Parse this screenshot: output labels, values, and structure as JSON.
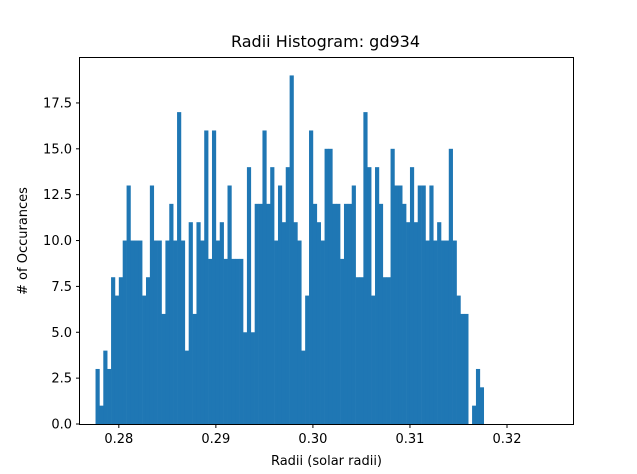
{
  "chart_data": {
    "type": "bar",
    "title": "Radii Histogram: gd934",
    "xlabel": "Radii (solar radii)",
    "ylabel": "# of Occurances",
    "xlim": [
      0.276,
      0.3268
    ],
    "ylim": [
      0,
      19.95
    ],
    "x_start": 0.2776,
    "bin_width": 0.0004,
    "bar_color": "#1f77b4",
    "grid": false,
    "xticks": [
      {
        "value": 0.28,
        "label": "0.28"
      },
      {
        "value": 0.29,
        "label": "0.29"
      },
      {
        "value": 0.3,
        "label": "0.30"
      },
      {
        "value": 0.31,
        "label": "0.31"
      },
      {
        "value": 0.32,
        "label": "0.32"
      }
    ],
    "yticks": [
      {
        "value": 0.0,
        "label": "0.0"
      },
      {
        "value": 2.5,
        "label": "2.5"
      },
      {
        "value": 5.0,
        "label": "5.0"
      },
      {
        "value": 7.5,
        "label": "7.5"
      },
      {
        "value": 10.0,
        "label": "10.0"
      },
      {
        "value": 12.5,
        "label": "12.5"
      },
      {
        "value": 15.0,
        "label": "15.0"
      },
      {
        "value": 17.5,
        "label": "17.5"
      }
    ],
    "values": [
      3,
      1,
      4,
      3,
      8,
      7,
      8,
      10,
      13,
      10,
      10,
      10,
      7,
      8,
      13,
      10,
      10,
      6,
      10,
      12,
      10,
      17,
      10,
      4,
      11,
      6,
      11,
      10,
      16,
      9,
      16,
      10,
      11,
      9,
      13,
      9,
      9,
      9,
      5,
      14,
      5,
      12,
      12,
      16,
      12,
      14,
      10,
      13,
      11,
      14,
      19,
      11,
      10,
      4,
      7,
      16,
      12,
      11,
      10,
      15,
      15,
      12,
      12,
      9,
      12,
      12,
      13,
      8,
      8,
      17,
      14,
      7,
      14,
      12,
      8,
      8,
      15,
      13,
      13,
      12,
      11,
      14,
      11,
      13,
      13,
      10,
      13,
      10,
      11,
      10,
      10,
      15,
      10,
      7,
      6,
      6,
      0,
      1,
      3,
      2
    ]
  }
}
